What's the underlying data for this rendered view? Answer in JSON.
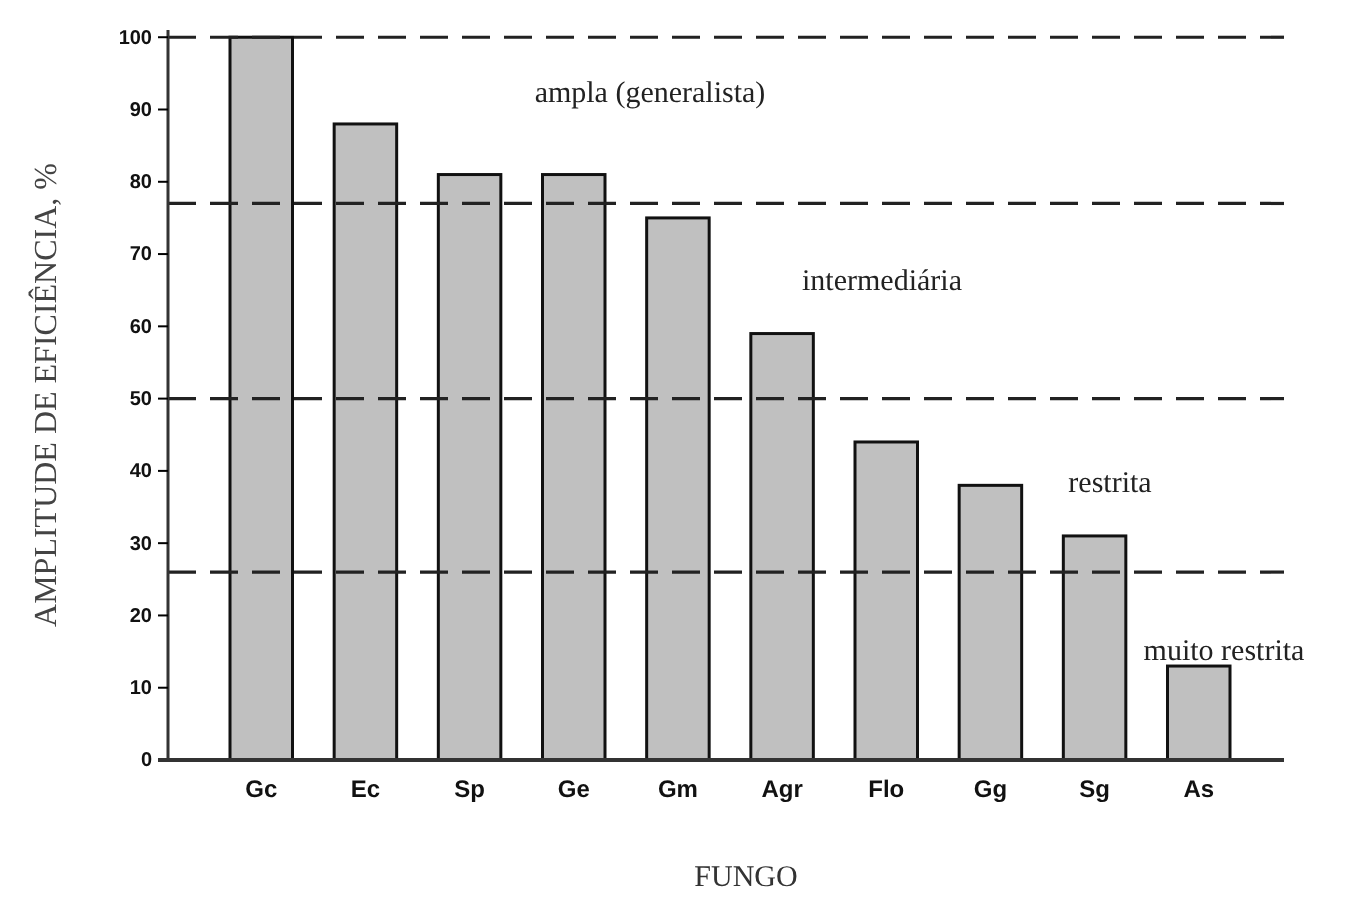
{
  "chart_data": {
    "type": "bar",
    "xlabel": "FUNGO",
    "ylabel": "AMPLITUDE DE EFICIÊNCIA, %",
    "categories": [
      "Gc",
      "Ec",
      "Sp",
      "Ge",
      "Gm",
      "Agr",
      "Flo",
      "Gg",
      "Sg",
      "As"
    ],
    "values": [
      100,
      88,
      81,
      81,
      75,
      59,
      44,
      38,
      31,
      13
    ],
    "color": "#c0c0c0",
    "ylim": [
      0,
      101
    ],
    "yticks": [
      0,
      10,
      20,
      30,
      40,
      50,
      60,
      70,
      80,
      90,
      100
    ],
    "grid": false,
    "ref_lines": [
      {
        "axis": "y",
        "value": 100,
        "line_style": "dashed"
      },
      {
        "axis": "y",
        "value": 77,
        "line_style": "dashed"
      },
      {
        "axis": "y",
        "value": 50,
        "line_style": "dashed"
      },
      {
        "axis": "y",
        "value": 26,
        "line_style": "dashed"
      }
    ],
    "annotations": [
      "ampla (generalista)",
      "intermediária",
      "restrita",
      "muito restrita"
    ]
  }
}
